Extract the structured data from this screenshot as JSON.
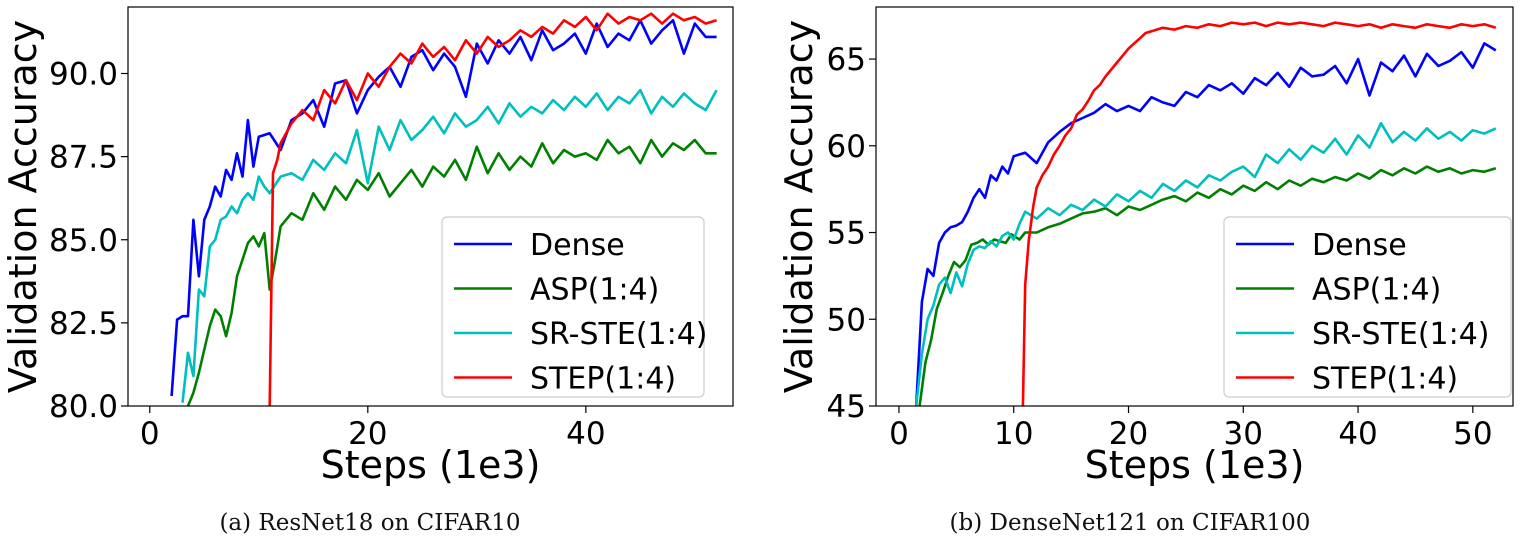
{
  "chart_data": [
    {
      "type": "line",
      "caption": "(a) ResNet18 on CIFAR10",
      "xlabel": "Steps (1e3)",
      "ylabel": "Validation Accuracy",
      "xlim": [
        -2,
        53.5
      ],
      "ylim": [
        80.0,
        92.0
      ],
      "xticks": [
        0,
        20,
        40
      ],
      "xtick_labels": [
        "0",
        "20",
        "40"
      ],
      "yticks": [
        80.0,
        82.5,
        85.0,
        87.5,
        90.0
      ],
      "ytick_labels": [
        "80.0",
        "82.5",
        "85.0",
        "87.5",
        "90.0"
      ],
      "grid": false,
      "legend_position": "lower-right",
      "series": [
        {
          "name": "Dense",
          "color": "#0000ff",
          "x": [
            2.0,
            2.5,
            3.0,
            3.5,
            4.0,
            4.5,
            5.0,
            5.5,
            6.0,
            6.5,
            7.0,
            7.5,
            8.0,
            8.5,
            9.0,
            9.5,
            10.0,
            11.0,
            12.0,
            13.0,
            14.0,
            15.0,
            16.0,
            17.0,
            18.0,
            19.0,
            20.0,
            21.0,
            22.0,
            23.0,
            24.0,
            25.0,
            26.0,
            27.0,
            28.0,
            29.0,
            30.0,
            31.0,
            32.0,
            33.0,
            34.0,
            35.0,
            36.0,
            37.0,
            38.0,
            39.0,
            40.0,
            41.0,
            42.0,
            43.0,
            44.0,
            45.0,
            46.0,
            47.0,
            48.0,
            49.0,
            50.0,
            51.0,
            52.0
          ],
          "y": [
            80.3,
            82.6,
            82.7,
            82.7,
            85.6,
            83.9,
            85.6,
            86.0,
            86.6,
            86.3,
            87.1,
            86.8,
            87.6,
            86.9,
            88.6,
            87.2,
            88.1,
            88.2,
            87.7,
            88.6,
            88.8,
            89.2,
            88.4,
            89.7,
            89.8,
            88.8,
            89.5,
            89.9,
            90.2,
            89.6,
            90.5,
            90.7,
            90.1,
            90.6,
            90.2,
            89.3,
            90.9,
            90.3,
            91.0,
            90.6,
            91.1,
            90.4,
            91.3,
            90.7,
            90.9,
            91.2,
            90.6,
            91.5,
            90.8,
            91.2,
            91.0,
            91.6,
            90.9,
            91.3,
            91.6,
            90.6,
            91.5,
            91.1,
            91.1
          ]
        },
        {
          "name": "ASP(1:4)",
          "color": "#008000",
          "x": [
            3.5,
            4.0,
            4.5,
            5.0,
            5.5,
            6.0,
            6.5,
            7.0,
            7.5,
            8.0,
            8.5,
            9.0,
            9.5,
            10.0,
            10.5,
            11.0,
            11.5,
            12.0,
            13.0,
            14.0,
            15.0,
            16.0,
            17.0,
            18.0,
            19.0,
            20.0,
            21.0,
            22.0,
            23.0,
            24.0,
            25.0,
            26.0,
            27.0,
            28.0,
            29.0,
            30.0,
            31.0,
            32.0,
            33.0,
            34.0,
            35.0,
            36.0,
            37.0,
            38.0,
            39.0,
            40.0,
            41.0,
            42.0,
            43.0,
            44.0,
            45.0,
            46.0,
            47.0,
            48.0,
            49.0,
            50.0,
            51.0,
            52.0
          ],
          "y": [
            80.0,
            80.4,
            81.0,
            81.7,
            82.4,
            82.9,
            82.7,
            82.1,
            82.8,
            83.9,
            84.4,
            84.9,
            85.1,
            84.8,
            85.2,
            83.5,
            84.4,
            85.4,
            85.8,
            85.6,
            86.4,
            85.9,
            86.6,
            86.2,
            86.8,
            86.5,
            87.0,
            86.3,
            86.7,
            87.1,
            86.6,
            87.2,
            86.9,
            87.4,
            86.8,
            87.8,
            87.0,
            87.6,
            87.1,
            87.5,
            87.2,
            87.9,
            87.3,
            87.7,
            87.5,
            87.6,
            87.4,
            88.0,
            87.6,
            87.8,
            87.3,
            88.0,
            87.5,
            87.9,
            87.7,
            88.0,
            87.6,
            87.6
          ]
        },
        {
          "name": "SR-STE(1:4)",
          "color": "#00bfbf",
          "x": [
            3.0,
            3.5,
            4.0,
            4.5,
            5.0,
            5.5,
            6.0,
            6.5,
            7.0,
            7.5,
            8.0,
            8.5,
            9.0,
            9.5,
            10.0,
            10.5,
            11.0,
            12.0,
            13.0,
            14.0,
            15.0,
            16.0,
            17.0,
            18.0,
            19.0,
            20.0,
            21.0,
            22.0,
            23.0,
            24.0,
            25.0,
            26.0,
            27.0,
            28.0,
            29.0,
            30.0,
            31.0,
            32.0,
            33.0,
            34.0,
            35.0,
            36.0,
            37.0,
            38.0,
            39.0,
            40.0,
            41.0,
            42.0,
            43.0,
            44.0,
            45.0,
            46.0,
            47.0,
            48.0,
            49.0,
            50.0,
            51.0,
            52.0
          ],
          "y": [
            80.1,
            81.6,
            80.9,
            83.5,
            83.3,
            84.8,
            85.0,
            85.6,
            85.7,
            86.0,
            85.8,
            86.2,
            86.4,
            86.2,
            86.9,
            86.6,
            86.4,
            86.9,
            87.0,
            86.8,
            87.4,
            87.1,
            87.6,
            87.3,
            88.3,
            86.7,
            88.4,
            87.7,
            88.6,
            88.0,
            88.3,
            88.7,
            88.2,
            88.8,
            88.4,
            88.6,
            89.0,
            88.5,
            89.1,
            88.7,
            89.0,
            88.8,
            89.2,
            88.9,
            89.3,
            89.0,
            89.4,
            88.9,
            89.3,
            89.1,
            89.5,
            88.8,
            89.3,
            89.0,
            89.4,
            89.1,
            88.9,
            89.5
          ]
        },
        {
          "name": "STEP(1:4)",
          "color": "#ff0000",
          "x": [
            11.0,
            11.3,
            11.7,
            12.0,
            13.0,
            14.0,
            15.0,
            16.0,
            17.0,
            18.0,
            19.0,
            20.0,
            21.0,
            22.0,
            23.0,
            24.0,
            25.0,
            26.0,
            27.0,
            28.0,
            29.0,
            30.0,
            31.0,
            32.0,
            33.0,
            34.0,
            35.0,
            36.0,
            37.0,
            38.0,
            39.0,
            40.0,
            41.0,
            42.0,
            43.0,
            44.0,
            45.0,
            46.0,
            47.0,
            48.0,
            49.0,
            50.0,
            51.0,
            52.0
          ],
          "y": [
            80.0,
            87.0,
            87.4,
            87.9,
            88.5,
            88.9,
            88.6,
            89.5,
            89.1,
            89.8,
            89.2,
            90.0,
            89.6,
            90.2,
            90.6,
            90.3,
            90.9,
            90.5,
            90.8,
            90.4,
            91.0,
            90.6,
            91.1,
            90.8,
            91.0,
            91.3,
            91.1,
            91.4,
            91.2,
            91.6,
            91.4,
            91.7,
            91.3,
            91.8,
            91.5,
            91.7,
            91.6,
            91.8,
            91.5,
            91.8,
            91.6,
            91.7,
            91.5,
            91.6
          ]
        }
      ]
    },
    {
      "type": "line",
      "caption": "(b) DenseNet121 on CIFAR100",
      "xlabel": "Steps (1e3)",
      "ylabel": "Validation Accuracy",
      "xlim": [
        -2,
        53.5
      ],
      "ylim": [
        45,
        68
      ],
      "xticks": [
        0,
        10,
        20,
        30,
        40,
        50
      ],
      "xtick_labels": [
        "0",
        "10",
        "20",
        "30",
        "40",
        "50"
      ],
      "yticks": [
        45,
        50,
        55,
        60,
        65
      ],
      "ytick_labels": [
        "45",
        "50",
        "55",
        "60",
        "65"
      ],
      "grid": false,
      "legend_position": "lower-right",
      "series": [
        {
          "name": "Dense",
          "color": "#0000ff",
          "x": [
            1.5,
            2.0,
            2.5,
            3.0,
            3.5,
            4.0,
            4.5,
            5.0,
            5.5,
            6.0,
            6.5,
            7.0,
            7.5,
            8.0,
            8.5,
            9.0,
            9.5,
            10.0,
            11.0,
            12.0,
            13.0,
            14.0,
            15.0,
            16.0,
            17.0,
            18.0,
            19.0,
            20.0,
            21.0,
            22.0,
            23.0,
            24.0,
            25.0,
            26.0,
            27.0,
            28.0,
            29.0,
            30.0,
            31.0,
            32.0,
            33.0,
            34.0,
            35.0,
            36.0,
            37.0,
            38.0,
            39.0,
            40.0,
            41.0,
            42.0,
            43.0,
            44.0,
            45.0,
            46.0,
            47.0,
            48.0,
            49.0,
            50.0,
            51.0,
            52.0
          ],
          "y": [
            45.0,
            51.0,
            52.9,
            52.5,
            54.4,
            55.0,
            55.3,
            55.4,
            55.6,
            56.2,
            57.0,
            57.5,
            57.0,
            58.3,
            58.0,
            58.8,
            58.4,
            59.4,
            59.6,
            59.0,
            60.2,
            60.8,
            61.3,
            61.6,
            61.9,
            62.4,
            62.0,
            62.3,
            62.0,
            62.8,
            62.5,
            62.3,
            63.1,
            62.8,
            63.5,
            63.2,
            63.6,
            63.0,
            63.9,
            63.5,
            64.2,
            63.4,
            64.5,
            64.0,
            64.1,
            64.6,
            63.6,
            65.0,
            62.9,
            64.8,
            64.3,
            65.2,
            64.0,
            65.3,
            64.6,
            64.9,
            65.4,
            64.5,
            65.9,
            65.5
          ]
        },
        {
          "name": "ASP(1:4)",
          "color": "#008000",
          "x": [
            1.8,
            2.3,
            2.8,
            3.3,
            3.8,
            4.3,
            4.8,
            5.3,
            5.8,
            6.3,
            6.8,
            7.3,
            7.8,
            8.3,
            8.8,
            9.3,
            9.8,
            10.5,
            11.0,
            12.0,
            13.0,
            14.0,
            15.0,
            16.0,
            17.0,
            18.0,
            19.0,
            20.0,
            21.0,
            22.0,
            23.0,
            24.0,
            25.0,
            26.0,
            27.0,
            28.0,
            29.0,
            30.0,
            31.0,
            32.0,
            33.0,
            34.0,
            35.0,
            36.0,
            37.0,
            38.0,
            39.0,
            40.0,
            41.0,
            42.0,
            43.0,
            44.0,
            45.0,
            46.0,
            47.0,
            48.0,
            49.0,
            50.0,
            51.0,
            52.0
          ],
          "y": [
            45.0,
            47.5,
            48.8,
            50.6,
            51.5,
            52.5,
            53.3,
            53.0,
            53.4,
            54.3,
            54.4,
            54.6,
            54.3,
            54.6,
            54.5,
            54.4,
            54.9,
            54.6,
            55.0,
            55.0,
            55.3,
            55.5,
            55.8,
            56.1,
            56.2,
            56.4,
            56.0,
            56.5,
            56.3,
            56.6,
            56.9,
            57.1,
            56.8,
            57.3,
            57.0,
            57.5,
            57.2,
            57.7,
            57.4,
            57.9,
            57.5,
            58.0,
            57.7,
            58.1,
            57.9,
            58.2,
            58.0,
            58.4,
            58.1,
            58.6,
            58.3,
            58.7,
            58.4,
            58.8,
            58.5,
            58.7,
            58.4,
            58.6,
            58.5,
            58.7
          ]
        },
        {
          "name": "SR-STE(1:4)",
          "color": "#00bfbf",
          "x": [
            1.5,
            2.0,
            2.5,
            3.0,
            3.5,
            4.0,
            4.5,
            5.0,
            5.5,
            6.0,
            6.5,
            7.0,
            7.5,
            8.0,
            8.5,
            9.0,
            9.5,
            10.0,
            10.5,
            11.0,
            12.0,
            13.0,
            14.0,
            15.0,
            16.0,
            17.0,
            18.0,
            19.0,
            20.0,
            21.0,
            22.0,
            23.0,
            24.0,
            25.0,
            26.0,
            27.0,
            28.0,
            29.0,
            30.0,
            31.0,
            32.0,
            33.0,
            34.0,
            35.0,
            36.0,
            37.0,
            38.0,
            39.0,
            40.0,
            41.0,
            42.0,
            43.0,
            44.0,
            45.0,
            46.0,
            47.0,
            48.0,
            49.0,
            50.0,
            51.0,
            52.0
          ],
          "y": [
            45.0,
            48.0,
            50.0,
            50.8,
            52.0,
            52.4,
            51.5,
            52.7,
            51.9,
            53.2,
            54.0,
            54.2,
            54.1,
            54.5,
            54.2,
            54.8,
            55.0,
            54.6,
            55.5,
            56.2,
            55.8,
            56.4,
            56.0,
            56.6,
            56.3,
            56.9,
            56.5,
            57.2,
            56.8,
            57.4,
            57.0,
            57.8,
            57.4,
            58.0,
            57.6,
            58.3,
            58.0,
            58.5,
            58.8,
            58.2,
            59.5,
            59.0,
            59.8,
            59.2,
            60.0,
            59.6,
            60.4,
            59.5,
            60.6,
            59.9,
            61.3,
            60.2,
            60.8,
            60.3,
            61.0,
            60.4,
            60.8,
            60.3,
            60.9,
            60.7,
            61.0
          ]
        },
        {
          "name": "STEP(1:4)",
          "color": "#ff0000",
          "x": [
            10.8,
            11.0,
            11.3,
            11.7,
            12.0,
            12.5,
            13.0,
            13.5,
            14.0,
            14.5,
            15.0,
            15.5,
            16.0,
            16.5,
            17.0,
            17.5,
            18.0,
            18.5,
            19.0,
            19.5,
            20.0,
            20.5,
            21.0,
            21.5,
            22.0,
            23.0,
            24.0,
            25.0,
            26.0,
            27.0,
            28.0,
            29.0,
            30.0,
            31.0,
            32.0,
            33.0,
            34.0,
            35.0,
            36.0,
            37.0,
            38.0,
            39.0,
            40.0,
            41.0,
            42.0,
            43.0,
            44.0,
            45.0,
            46.0,
            47.0,
            48.0,
            49.0,
            50.0,
            51.0,
            52.0
          ],
          "y": [
            45.0,
            52.0,
            54.5,
            56.5,
            57.6,
            58.3,
            58.8,
            59.5,
            60.0,
            60.6,
            61.0,
            61.8,
            62.1,
            62.6,
            63.2,
            63.5,
            64.0,
            64.4,
            64.8,
            65.2,
            65.6,
            65.9,
            66.2,
            66.5,
            66.6,
            66.8,
            66.7,
            66.9,
            66.8,
            67.0,
            66.9,
            67.1,
            67.0,
            67.1,
            66.9,
            67.1,
            67.0,
            67.1,
            67.0,
            66.9,
            67.1,
            67.0,
            66.9,
            67.0,
            66.8,
            67.0,
            66.9,
            66.8,
            67.0,
            66.9,
            66.8,
            67.0,
            66.9,
            67.0,
            66.8
          ]
        }
      ]
    }
  ]
}
